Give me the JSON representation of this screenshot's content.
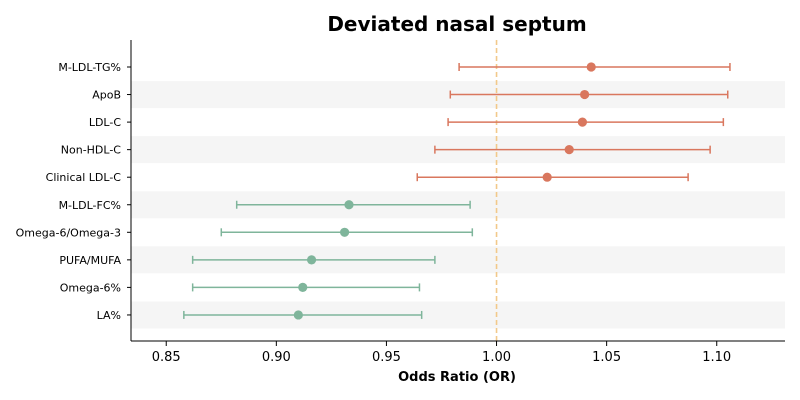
{
  "chart_data": {
    "type": "forest",
    "title": "Deviated nasal septum",
    "xlabel": "Odds Ratio (OR)",
    "xlim": [
      0.834,
      1.131
    ],
    "xticks": [
      0.85,
      0.9,
      0.95,
      1.0,
      1.05,
      1.1
    ],
    "xtick_labels": [
      "0.85",
      "0.90",
      "0.95",
      "1.00",
      "1.05",
      "1.10"
    ],
    "reference_line": 1.0,
    "grid": false,
    "colors": {
      "positive": "#d9775e",
      "negative": "#7fb59b",
      "reference": "#f2c98a",
      "band": "#f5f5f5"
    },
    "rows": [
      {
        "label": "M-LDL-TG%",
        "or": 1.043,
        "ci_low": 0.983,
        "ci_high": 1.106,
        "direction": "positive"
      },
      {
        "label": "ApoB",
        "or": 1.04,
        "ci_low": 0.979,
        "ci_high": 1.105,
        "direction": "positive"
      },
      {
        "label": "LDL-C",
        "or": 1.039,
        "ci_low": 0.978,
        "ci_high": 1.103,
        "direction": "positive"
      },
      {
        "label": "Non-HDL-C",
        "or": 1.033,
        "ci_low": 0.972,
        "ci_high": 1.097,
        "direction": "positive"
      },
      {
        "label": "Clinical LDL-C",
        "or": 1.023,
        "ci_low": 0.964,
        "ci_high": 1.087,
        "direction": "positive"
      },
      {
        "label": "M-LDL-FC%",
        "or": 0.933,
        "ci_low": 0.882,
        "ci_high": 0.988,
        "direction": "negative"
      },
      {
        "label": "Omega-6/Omega-3",
        "or": 0.931,
        "ci_low": 0.875,
        "ci_high": 0.989,
        "direction": "negative"
      },
      {
        "label": "PUFA/MUFA",
        "or": 0.916,
        "ci_low": 0.862,
        "ci_high": 0.972,
        "direction": "negative"
      },
      {
        "label": "Omega-6%",
        "or": 0.912,
        "ci_low": 0.862,
        "ci_high": 0.965,
        "direction": "negative"
      },
      {
        "label": "LA%",
        "or": 0.91,
        "ci_low": 0.858,
        "ci_high": 0.966,
        "direction": "negative"
      }
    ]
  }
}
